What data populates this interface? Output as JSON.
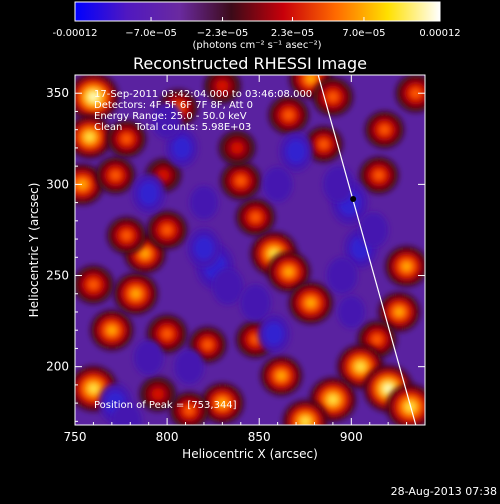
{
  "chart_data": {
    "type": "heatmap",
    "title": "Reconstructed RHESSI Image",
    "xlabel": "Heliocentric X (arcsec)",
    "ylabel": "Heliocentric Y (arcsec)",
    "xlim": [
      750,
      940
    ],
    "ylim": [
      168,
      360
    ],
    "x_ticks": [
      750,
      800,
      850,
      900
    ],
    "y_ticks": [
      200,
      250,
      300,
      350
    ],
    "colorbar": {
      "label": "(photons cm⁻² s⁻¹ asec⁻²)",
      "range": [
        -0.00012,
        0.00012
      ],
      "tick_labels": [
        "-0.00012",
        "−7.0e−05",
        "−2.3e−05",
        "2.3e−05",
        "7.0e−05",
        "0.00012"
      ],
      "tick_values": [
        -0.00012,
        -7e-05,
        -2.3e-05,
        2.3e-05,
        7e-05,
        0.00012
      ],
      "colors": [
        "#0000ff",
        "#5018c0",
        "#6a2aa0",
        "#3c0a18",
        "#c8000a",
        "#ff6a00",
        "#ffe000",
        "#ffffff"
      ]
    },
    "annotations": {
      "time_range": "17-Sep-2011 03:42:04.000 to 03:46:08.000",
      "detectors": "Detectors: 4F 5F 6F 7F 8F, Att 0",
      "energy_range": "Energy Range: 25.0 - 50.0 keV",
      "clean_info": "Clean    Total counts: 5.98E+03",
      "peak": "Position of Peak = [753,344]"
    },
    "peak_position": [
      753,
      344
    ],
    "limb_line": {
      "x1": 882,
      "y1": 360,
      "x2": 935,
      "y2": 168
    },
    "marker": {
      "x": 901,
      "y": 292
    },
    "intensity_blobs": [
      {
        "x": 760,
        "y": 348,
        "v": 1.0
      },
      {
        "x": 758,
        "y": 326,
        "v": 0.8
      },
      {
        "x": 754,
        "y": 300,
        "v": 0.7
      },
      {
        "x": 760,
        "y": 188,
        "v": 0.9
      },
      {
        "x": 770,
        "y": 220,
        "v": 0.7
      },
      {
        "x": 783,
        "y": 240,
        "v": 0.75
      },
      {
        "x": 788,
        "y": 262,
        "v": 0.65
      },
      {
        "x": 800,
        "y": 275,
        "v": 0.6
      },
      {
        "x": 772,
        "y": 305,
        "v": 0.55
      },
      {
        "x": 778,
        "y": 325,
        "v": 0.55
      },
      {
        "x": 806,
        "y": 342,
        "v": 0.55
      },
      {
        "x": 830,
        "y": 354,
        "v": 0.45
      },
      {
        "x": 840,
        "y": 302,
        "v": 0.6
      },
      {
        "x": 848,
        "y": 282,
        "v": 0.55
      },
      {
        "x": 838,
        "y": 320,
        "v": 0.45
      },
      {
        "x": 858,
        "y": 262,
        "v": 0.85
      },
      {
        "x": 866,
        "y": 252,
        "v": 0.7
      },
      {
        "x": 878,
        "y": 235,
        "v": 0.75
      },
      {
        "x": 866,
        "y": 338,
        "v": 0.6
      },
      {
        "x": 878,
        "y": 358,
        "v": 0.7
      },
      {
        "x": 890,
        "y": 348,
        "v": 0.6
      },
      {
        "x": 885,
        "y": 322,
        "v": 0.5
      },
      {
        "x": 915,
        "y": 305,
        "v": 0.55
      },
      {
        "x": 918,
        "y": 330,
        "v": 0.55
      },
      {
        "x": 935,
        "y": 350,
        "v": 0.6
      },
      {
        "x": 930,
        "y": 255,
        "v": 0.7
      },
      {
        "x": 926,
        "y": 230,
        "v": 0.65
      },
      {
        "x": 914,
        "y": 215,
        "v": 0.55
      },
      {
        "x": 905,
        "y": 200,
        "v": 0.85
      },
      {
        "x": 920,
        "y": 188,
        "v": 0.95
      },
      {
        "x": 932,
        "y": 178,
        "v": 0.9
      },
      {
        "x": 890,
        "y": 182,
        "v": 0.85
      },
      {
        "x": 875,
        "y": 170,
        "v": 0.8
      },
      {
        "x": 862,
        "y": 195,
        "v": 0.65
      },
      {
        "x": 848,
        "y": 215,
        "v": 0.55
      },
      {
        "x": 830,
        "y": 180,
        "v": 0.7
      },
      {
        "x": 812,
        "y": 176,
        "v": 0.55
      },
      {
        "x": 822,
        "y": 212,
        "v": 0.5
      },
      {
        "x": 800,
        "y": 218,
        "v": 0.6
      },
      {
        "x": 795,
        "y": 185,
        "v": 0.45
      },
      {
        "x": 760,
        "y": 245,
        "v": 0.6
      },
      {
        "x": 778,
        "y": 272,
        "v": 0.55
      },
      {
        "x": 798,
        "y": 305,
        "v": 0.4
      },
      {
        "x": 826,
        "y": 255,
        "v": -0.75
      },
      {
        "x": 820,
        "y": 265,
        "v": -0.55
      },
      {
        "x": 833,
        "y": 244,
        "v": -0.45
      },
      {
        "x": 899,
        "y": 290,
        "v": -0.7
      },
      {
        "x": 893,
        "y": 300,
        "v": -0.45
      },
      {
        "x": 905,
        "y": 265,
        "v": -0.55
      },
      {
        "x": 895,
        "y": 250,
        "v": -0.45
      },
      {
        "x": 912,
        "y": 275,
        "v": -0.4
      },
      {
        "x": 790,
        "y": 295,
        "v": -0.55
      },
      {
        "x": 808,
        "y": 320,
        "v": -0.5
      },
      {
        "x": 800,
        "y": 335,
        "v": -0.45
      },
      {
        "x": 772,
        "y": 180,
        "v": -0.55
      },
      {
        "x": 778,
        "y": 170,
        "v": -0.45
      },
      {
        "x": 870,
        "y": 318,
        "v": -0.55
      },
      {
        "x": 860,
        "y": 300,
        "v": -0.4
      },
      {
        "x": 848,
        "y": 235,
        "v": -0.45
      },
      {
        "x": 858,
        "y": 218,
        "v": -0.5
      },
      {
        "x": 820,
        "y": 290,
        "v": -0.35
      },
      {
        "x": 812,
        "y": 200,
        "v": -0.4
      },
      {
        "x": 790,
        "y": 205,
        "v": -0.4
      },
      {
        "x": 900,
        "y": 230,
        "v": -0.3
      }
    ]
  },
  "footer": {
    "timestamp": "28-Aug-2013 07:38"
  }
}
